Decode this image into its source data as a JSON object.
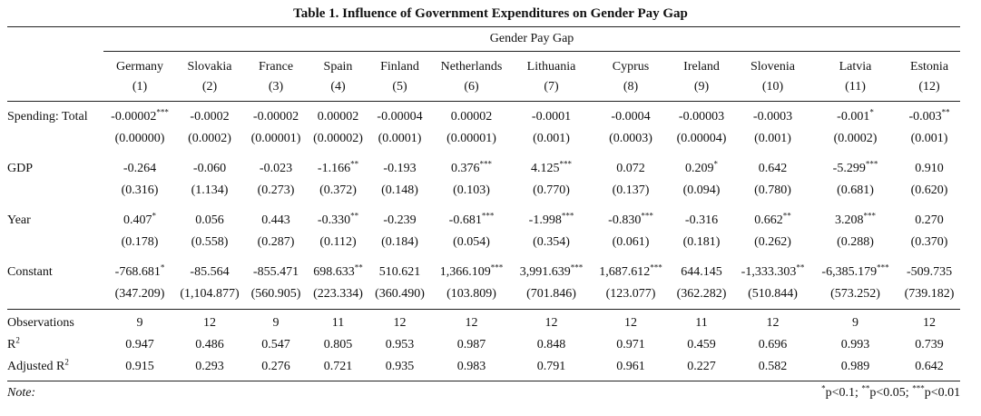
{
  "table": {
    "title": "Table 1. Influence of Government Expenditures on Gender Pay Gap",
    "group_header": "Gender Pay Gap",
    "columns": [
      {
        "name": "Germany",
        "num": "(1)"
      },
      {
        "name": "Slovakia",
        "num": "(2)"
      },
      {
        "name": "France",
        "num": "(3)"
      },
      {
        "name": "Spain",
        "num": "(4)"
      },
      {
        "name": "Finland",
        "num": "(5)"
      },
      {
        "name": "Netherlands",
        "num": "(6)"
      },
      {
        "name": "Lithuania",
        "num": "(7)"
      },
      {
        "name": "Cyprus",
        "num": "(8)"
      },
      {
        "name": "Ireland",
        "num": "(9)"
      },
      {
        "name": "Slovenia",
        "num": "(10)"
      },
      {
        "name": "Latvia",
        "num": "(11)"
      },
      {
        "name": "Estonia",
        "num": "(12)"
      }
    ],
    "rows": [
      {
        "label": "Spending: Total",
        "coef": [
          {
            "v": "-0.00002",
            "s": "***"
          },
          {
            "v": "-0.0002",
            "s": ""
          },
          {
            "v": "-0.00002",
            "s": ""
          },
          {
            "v": "0.00002",
            "s": ""
          },
          {
            "v": "-0.00004",
            "s": ""
          },
          {
            "v": "0.00002",
            "s": ""
          },
          {
            "v": "-0.0001",
            "s": ""
          },
          {
            "v": "-0.0004",
            "s": ""
          },
          {
            "v": "-0.00003",
            "s": ""
          },
          {
            "v": "-0.0003",
            "s": ""
          },
          {
            "v": "-0.001",
            "s": "*"
          },
          {
            "v": "-0.003",
            "s": "**"
          }
        ],
        "se": [
          "(0.00000)",
          "(0.0002)",
          "(0.00001)",
          "(0.00002)",
          "(0.0001)",
          "(0.00001)",
          "(0.001)",
          "(0.0003)",
          "(0.00004)",
          "(0.001)",
          "(0.0002)",
          "(0.001)"
        ]
      },
      {
        "label": "GDP",
        "coef": [
          {
            "v": "-0.264",
            "s": ""
          },
          {
            "v": "-0.060",
            "s": ""
          },
          {
            "v": "-0.023",
            "s": ""
          },
          {
            "v": "-1.166",
            "s": "**"
          },
          {
            "v": "-0.193",
            "s": ""
          },
          {
            "v": "0.376",
            "s": "***"
          },
          {
            "v": "4.125",
            "s": "***"
          },
          {
            "v": "0.072",
            "s": ""
          },
          {
            "v": "0.209",
            "s": "*"
          },
          {
            "v": "0.642",
            "s": ""
          },
          {
            "v": "-5.299",
            "s": "***"
          },
          {
            "v": "0.910",
            "s": ""
          }
        ],
        "se": [
          "(0.316)",
          "(1.134)",
          "(0.273)",
          "(0.372)",
          "(0.148)",
          "(0.103)",
          "(0.770)",
          "(0.137)",
          "(0.094)",
          "(0.780)",
          "(0.681)",
          "(0.620)"
        ]
      },
      {
        "label": "Year",
        "coef": [
          {
            "v": "0.407",
            "s": "*"
          },
          {
            "v": "0.056",
            "s": ""
          },
          {
            "v": "0.443",
            "s": ""
          },
          {
            "v": "-0.330",
            "s": "**"
          },
          {
            "v": "-0.239",
            "s": ""
          },
          {
            "v": "-0.681",
            "s": "***"
          },
          {
            "v": "-1.998",
            "s": "***"
          },
          {
            "v": "-0.830",
            "s": "***"
          },
          {
            "v": "-0.316",
            "s": ""
          },
          {
            "v": "0.662",
            "s": "**"
          },
          {
            "v": "3.208",
            "s": "***"
          },
          {
            "v": "0.270",
            "s": ""
          }
        ],
        "se": [
          "(0.178)",
          "(0.558)",
          "(0.287)",
          "(0.112)",
          "(0.184)",
          "(0.054)",
          "(0.354)",
          "(0.061)",
          "(0.181)",
          "(0.262)",
          "(0.288)",
          "(0.370)"
        ]
      },
      {
        "label": "Constant",
        "coef": [
          {
            "v": "-768.681",
            "s": "*"
          },
          {
            "v": "-85.564",
            "s": ""
          },
          {
            "v": "-855.471",
            "s": ""
          },
          {
            "v": "698.633",
            "s": "**"
          },
          {
            "v": "510.621",
            "s": ""
          },
          {
            "v": "1,366.109",
            "s": "***"
          },
          {
            "v": "3,991.639",
            "s": "***"
          },
          {
            "v": "1,687.612",
            "s": "***"
          },
          {
            "v": "644.145",
            "s": ""
          },
          {
            "v": "-1,333.303",
            "s": "**"
          },
          {
            "v": "-6,385.179",
            "s": "***"
          },
          {
            "v": "-509.735",
            "s": ""
          }
        ],
        "se": [
          "(347.209)",
          "(1,104.877)",
          "(560.905)",
          "(223.334)",
          "(360.490)",
          "(103.809)",
          "(701.846)",
          "(123.077)",
          "(362.282)",
          "(510.844)",
          "(573.252)",
          "(739.182)"
        ]
      }
    ],
    "stats": [
      {
        "label": "Observations",
        "sup": "",
        "values": [
          "9",
          "12",
          "9",
          "11",
          "12",
          "12",
          "12",
          "12",
          "11",
          "12",
          "9",
          "12"
        ]
      },
      {
        "label": "R",
        "sup": "2",
        "values": [
          "0.947",
          "0.486",
          "0.547",
          "0.805",
          "0.953",
          "0.987",
          "0.848",
          "0.971",
          "0.459",
          "0.696",
          "0.993",
          "0.739"
        ]
      },
      {
        "label": "Adjusted R",
        "sup": "2",
        "values": [
          "0.915",
          "0.293",
          "0.276",
          "0.721",
          "0.935",
          "0.983",
          "0.791",
          "0.961",
          "0.227",
          "0.582",
          "0.989",
          "0.642"
        ]
      }
    ],
    "note": {
      "label": "Note:",
      "parts": [
        {
          "sup": "*",
          "text": "p<0.1; "
        },
        {
          "sup": "**",
          "text": "p<0.05; "
        },
        {
          "sup": "***",
          "text": "p<0.01"
        }
      ]
    }
  }
}
